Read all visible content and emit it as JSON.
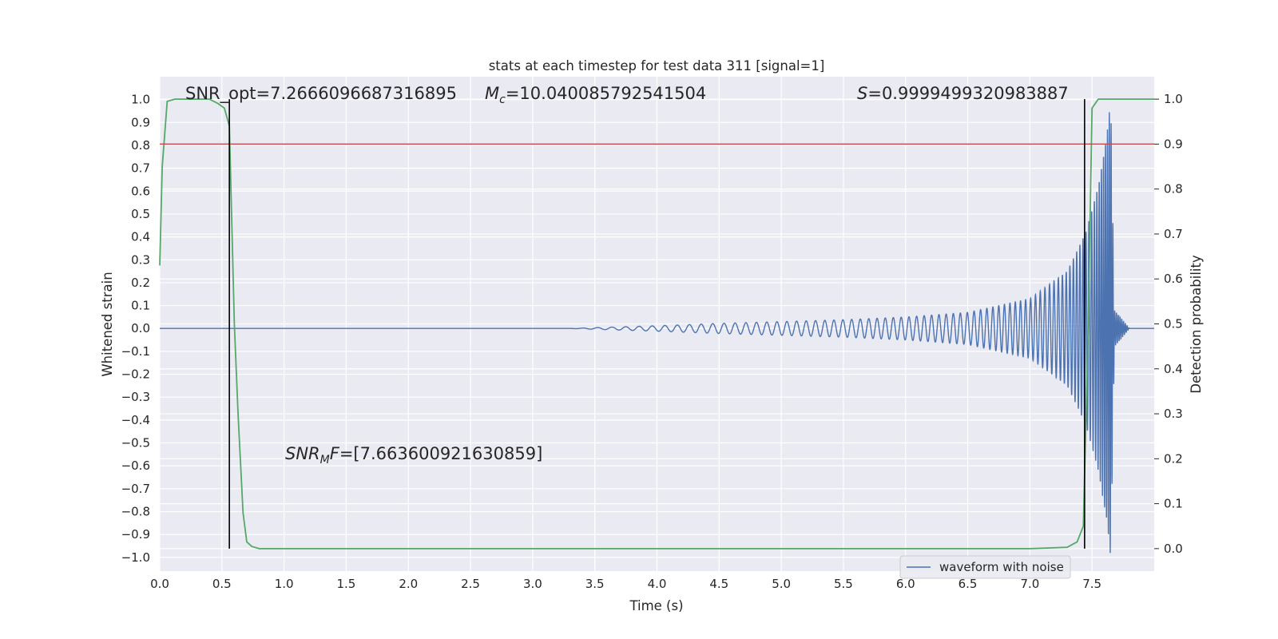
{
  "chart_data": {
    "type": "line",
    "title": "stats at each timestep for test data 311 [signal=1]",
    "xlabel": "Time (s)",
    "ylabel_left": "Whitened strain",
    "ylabel_right": "Detection probability",
    "xlim": [
      0.0,
      8.0
    ],
    "ylim_left": [
      -1.06,
      1.1
    ],
    "ylim_right": [
      -0.05,
      1.05
    ],
    "xticks": [
      "0.0",
      "0.5",
      "1.0",
      "1.5",
      "2.0",
      "2.5",
      "3.0",
      "3.5",
      "4.0",
      "4.5",
      "5.0",
      "5.5",
      "6.0",
      "6.5",
      "7.0",
      "7.5"
    ],
    "yticks_left": [
      "1.0",
      "0.9",
      "0.8",
      "0.7",
      "0.6",
      "0.5",
      "0.4",
      "0.3",
      "0.2",
      "0.1",
      "0.0",
      "−0.1",
      "−0.2",
      "−0.3",
      "−0.4",
      "−0.5",
      "−0.6",
      "−0.7",
      "−0.8",
      "−0.9",
      "−1.0"
    ],
    "yticks_right": [
      "1.0",
      "0.9",
      "0.8",
      "0.7",
      "0.6",
      "0.5",
      "0.4",
      "0.3",
      "0.2",
      "0.1",
      "0.0"
    ],
    "grid": true,
    "background": "#eaeaf2",
    "legend": {
      "position": "bottom-right",
      "entries": [
        "waveform with noise"
      ]
    },
    "series": [
      {
        "name": "waveform with noise",
        "axis": "left",
        "color": "#4c72b0",
        "kind": "chirp",
        "t_start": 0.0,
        "t_end": 8.0,
        "t_merger": 7.65,
        "envelope": [
          [
            3.3,
            0.0
          ],
          [
            4.0,
            0.012
          ],
          [
            4.5,
            0.022
          ],
          [
            5.0,
            0.03
          ],
          [
            5.5,
            0.038
          ],
          [
            6.0,
            0.05
          ],
          [
            6.5,
            0.07
          ],
          [
            7.0,
            0.13
          ],
          [
            7.3,
            0.25
          ],
          [
            7.45,
            0.42
          ],
          [
            7.55,
            0.62
          ],
          [
            7.62,
            0.85
          ],
          [
            7.65,
            1.0
          ],
          [
            7.68,
            0.08
          ],
          [
            7.8,
            0.0
          ],
          [
            8.0,
            0.0
          ]
        ],
        "freq_hz": [
          [
            3.3,
            8
          ],
          [
            4.5,
            11
          ],
          [
            5.5,
            14
          ],
          [
            6.5,
            18
          ],
          [
            7.2,
            28
          ],
          [
            7.5,
            45
          ],
          [
            7.65,
            70
          ]
        ]
      },
      {
        "name": "",
        "axis": "right",
        "color": "#55a868",
        "x": [
          0.0,
          0.02,
          0.06,
          0.12,
          0.2,
          0.3,
          0.4,
          0.47,
          0.52,
          0.56,
          0.6,
          0.63,
          0.67,
          0.7,
          0.74,
          0.8,
          1.0,
          2.0,
          4.0,
          6.0,
          7.0,
          7.3,
          7.38,
          7.43,
          7.47,
          7.5,
          7.55,
          7.6,
          8.0
        ],
        "y": [
          0.63,
          0.85,
          0.995,
          1.0,
          1.0,
          1.0,
          1.0,
          0.99,
          0.98,
          0.94,
          0.5,
          0.3,
          0.08,
          0.015,
          0.005,
          0.0,
          0.0,
          0.0,
          0.0,
          0.0,
          0.0,
          0.003,
          0.015,
          0.05,
          0.5,
          0.98,
          1.0,
          1.0,
          1.0
        ]
      },
      {
        "name": "",
        "axis": "right",
        "color": "#c44e52",
        "kind": "hline",
        "y": 0.9
      }
    ],
    "vlines": [
      {
        "x": 0.56,
        "ymin": 0.0,
        "ymax": 1.0,
        "axis": "right",
        "color": "#000000"
      },
      {
        "x": 7.44,
        "ymin": 0.0,
        "ymax": 1.0,
        "axis": "right",
        "color": "#000000"
      }
    ],
    "annotations": {
      "snr_opt": "SNR_opt=7.2666096687316895",
      "mc_symbol": "M",
      "mc_subscript": "c",
      "mc_value": "=10.040085792541504",
      "s_symbol": "S",
      "s_value": "=0.9999499320983887",
      "snrmf_symbol": "SNR",
      "snrmf_subscript": "M",
      "snrmf_suffix": "F",
      "snrmf_value": "=[7.663600921630859]"
    }
  }
}
